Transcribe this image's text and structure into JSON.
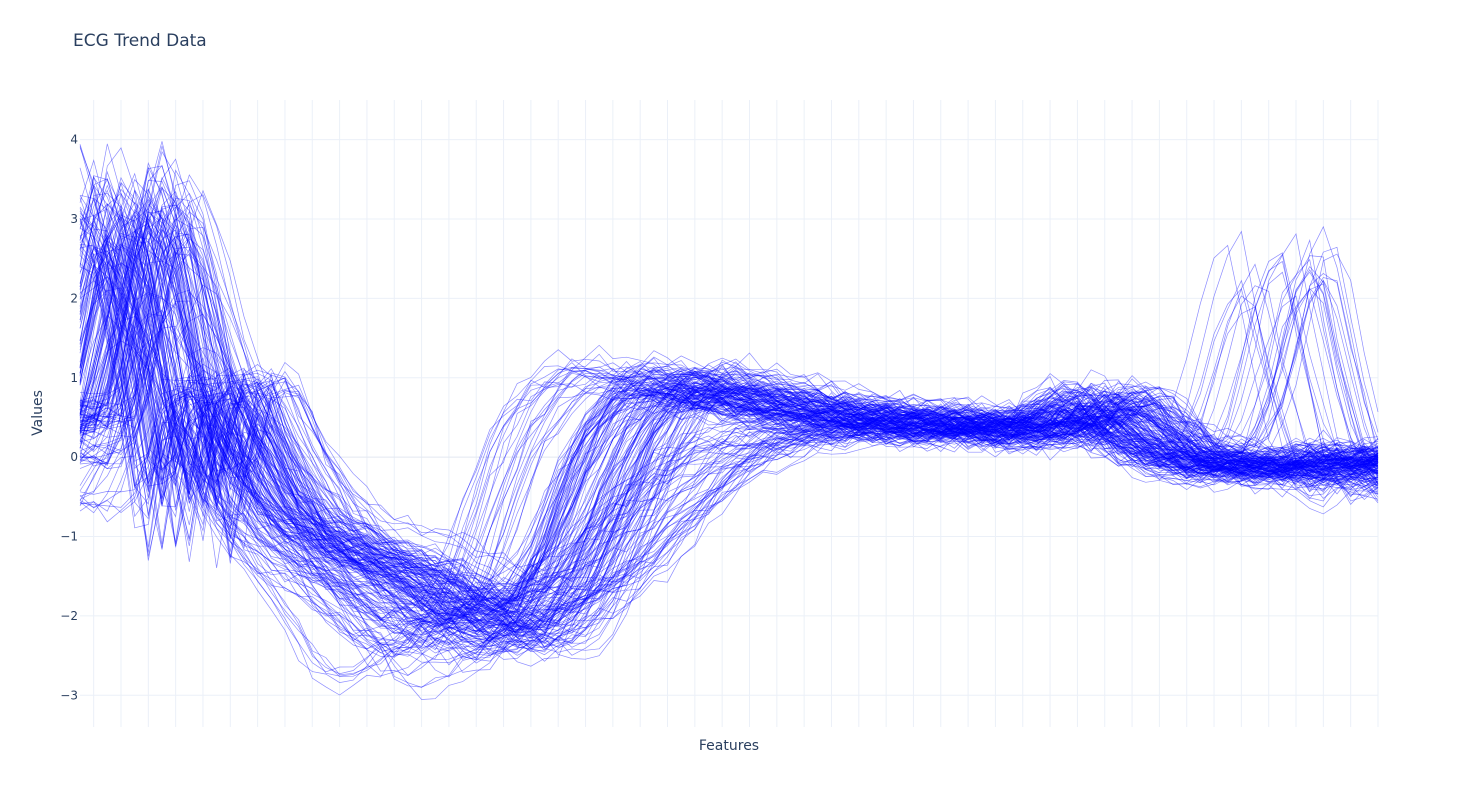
{
  "chart_data": {
    "type": "line",
    "title": "ECG Trend Data",
    "xlabel": "Features",
    "ylabel": "Values",
    "ylim": [
      -3.4,
      4.5
    ],
    "y_ticks": [
      "−3",
      "−2",
      "−1",
      "0",
      "1",
      "2",
      "3",
      "4"
    ],
    "x_points": 96,
    "grid": true,
    "line_color": "#0000ff",
    "series_count": 200,
    "prototypes": [
      {
        "name": "",
        "values": [
          0.4,
          1.6,
          3.0,
          2.6,
          1.2,
          -0.6,
          0.8,
          0.9,
          0.2,
          -0.3,
          -0.7,
          -0.9,
          -1.1,
          -1.2,
          -1.3,
          -1.4,
          -1.6,
          -1.8,
          -2.0,
          -2.1,
          -2.0,
          -1.6,
          -1.0,
          -0.3,
          0.3,
          0.7,
          0.9,
          0.9,
          0.85,
          0.75,
          0.7,
          0.65,
          0.6,
          0.55,
          0.5,
          0.5,
          0.45,
          0.45,
          0.4,
          0.4,
          0.35,
          0.35,
          0.3,
          0.5,
          0.7,
          0.6,
          0.3,
          0.1,
          0.0,
          -0.05,
          -0.1,
          -0.1,
          -0.05,
          -0.1,
          -0.1,
          0.0,
          -0.05
        ]
      },
      {
        "name": "",
        "values": [
          0.0,
          0.8,
          2.4,
          3.0,
          2.2,
          1.2,
          0.4,
          -0.3,
          -0.8,
          -1.1,
          -1.3,
          -1.5,
          -1.6,
          -1.8,
          -2.0,
          -2.1,
          -2.1,
          -2.1,
          -2.0,
          -1.9,
          -1.8,
          -1.7,
          -1.5,
          -1.3,
          -1.0,
          -0.7,
          -0.4,
          -0.1,
          0.1,
          0.2,
          0.25,
          0.3,
          0.3,
          0.3,
          0.3,
          0.3,
          0.35,
          0.4,
          0.45,
          0.5,
          0.5,
          0.45,
          0.4,
          0.5,
          0.6,
          0.5,
          0.3,
          0.1,
          0.0,
          0.1,
          0.8,
          2.0,
          2.4,
          1.0,
          0.0,
          -0.4,
          -0.2
        ]
      },
      {
        "name": "",
        "values": [
          -0.5,
          0.2,
          1.5,
          1.9,
          1.4,
          0.9,
          0.2,
          -0.4,
          -0.8,
          -1.2,
          -1.5,
          -1.9,
          -2.3,
          -2.5,
          -2.4,
          -2.2,
          -2.0,
          -1.8,
          -1.8,
          -1.7,
          -1.6,
          -1.5,
          -1.3,
          -1.0,
          -0.7,
          -0.5,
          -0.3,
          -0.1,
          0.0,
          0.1,
          0.2,
          0.3,
          0.35,
          0.4,
          0.4,
          0.35,
          0.35,
          0.3,
          0.3,
          0.3,
          0.3,
          0.25,
          0.2,
          0.3,
          0.4,
          0.3,
          0.2,
          0.0,
          -0.1,
          -0.2,
          -0.2,
          -0.1,
          -0.1,
          -0.2,
          -0.3,
          -0.5,
          -0.3
        ]
      },
      {
        "name": "",
        "values": [
          0.6,
          2.2,
          3.4,
          2.5,
          0.8,
          -1.2,
          0.5,
          0.2,
          -0.5,
          -0.9,
          -1.1,
          -1.3,
          -1.5,
          -1.7,
          -1.9,
          -2.0,
          -2.1,
          -1.9,
          -1.4,
          -0.6,
          0.2,
          0.6,
          0.9,
          1.0,
          0.95,
          0.9,
          0.8,
          0.7,
          0.65,
          0.6,
          0.55,
          0.5,
          0.5,
          0.45,
          0.45,
          0.4,
          0.4,
          0.4,
          0.35,
          0.35,
          0.3,
          0.3,
          0.3,
          0.6,
          0.8,
          0.6,
          0.3,
          0.05,
          -0.05,
          -0.1,
          -0.15,
          -0.1,
          -0.1,
          -0.15,
          -0.1,
          0.1,
          0.0
        ]
      }
    ],
    "prototype_weights": [
      0.58,
      0.12,
      0.12,
      0.18
    ],
    "seed": 12345
  }
}
